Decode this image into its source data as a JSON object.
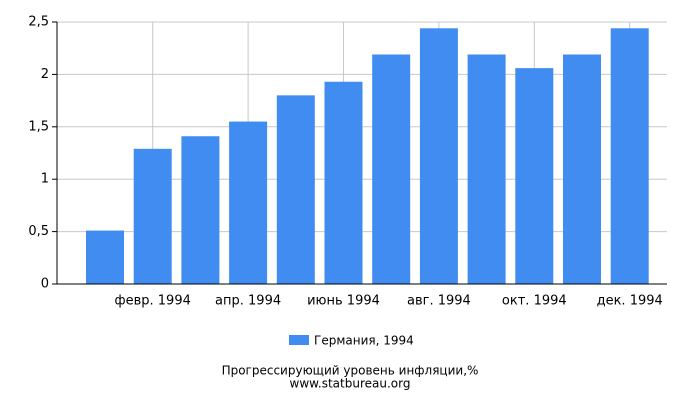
{
  "chart_data": {
    "type": "bar",
    "categories": [
      null,
      "февр. 1994",
      null,
      "апр. 1994",
      null,
      "июнь 1994",
      null,
      "авг. 1994",
      null,
      "окт. 1994",
      null,
      "дек. 1994"
    ],
    "series": [
      {
        "name": "Германия, 1994",
        "color": "#418cf0",
        "values": [
          0.51,
          1.29,
          1.41,
          1.55,
          1.8,
          1.93,
          2.19,
          2.44,
          2.19,
          2.06,
          2.19,
          2.44
        ]
      }
    ],
    "ylim": [
      0,
      2.5
    ],
    "yticks": [
      0,
      {
        "value": 0.5,
        "label": "0,5"
      },
      1,
      {
        "value": 1.5,
        "label": "1,5"
      },
      2,
      {
        "value": 2.5,
        "label": "2,5"
      }
    ],
    "grid": true,
    "title": "Прогрессирующий уровень инфляции,%",
    "source": "www.statbureau.org"
  }
}
